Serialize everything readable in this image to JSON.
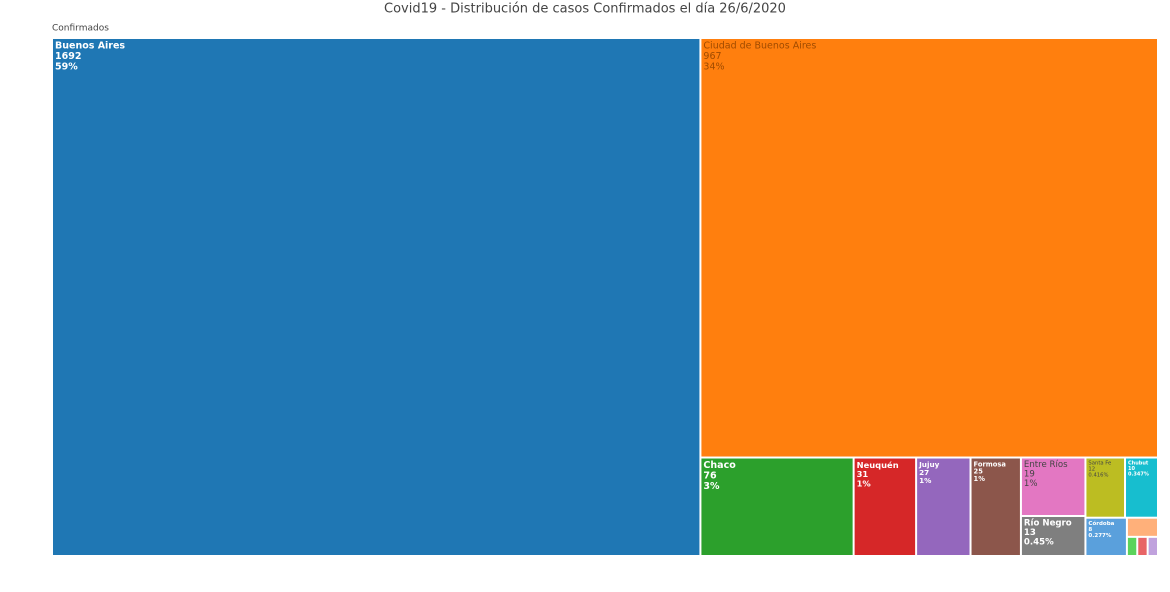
{
  "chart_data": {
    "type": "treemap",
    "title": "Covid19 - Distribución de casos Confirmados el día 26/6/2020",
    "root_label": "Confirmados",
    "categories": [
      "Buenos Aires",
      "Ciudad de Buenos Aires",
      "Chaco",
      "Neuquén",
      "Jujuy",
      "Formosa",
      "Entre Ríos",
      "Río Negro",
      "Santa Fe",
      "Chubut",
      "Córdoba",
      null,
      null,
      null,
      null
    ],
    "values": [
      1692,
      967,
      76,
      31,
      27,
      25,
      19,
      13,
      12,
      10,
      8,
      3,
      1,
      1,
      1
    ],
    "percent_labels": [
      "59%",
      "34%",
      "3%",
      "1%",
      "1%",
      "1%",
      "1%",
      "0.45%",
      "0.416%",
      "0.347%",
      "0.277%",
      null,
      null,
      null,
      null
    ],
    "colors": [
      "#1f77b4",
      "#ff7f0e",
      "#2ca02c",
      "#d62728",
      "#9467bd",
      "#8c564b",
      "#e377c2",
      "#7f7f7f",
      "#bcbd22",
      "#17becf",
      "#5aa0dc",
      "#ffb07a",
      "#5bd35b",
      "#e86466",
      "#c0a2dd"
    ]
  }
}
